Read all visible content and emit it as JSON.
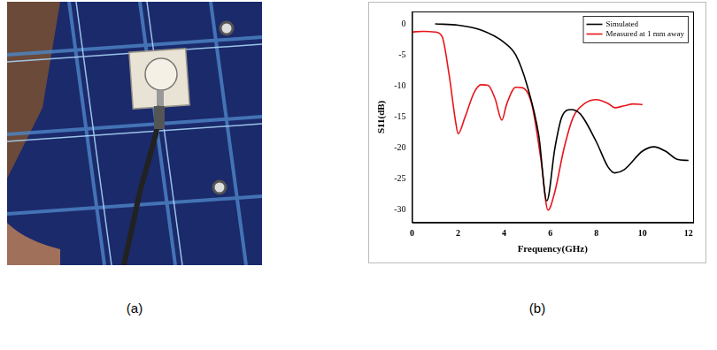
{
  "panel_labels": [
    "(a)",
    "(b)"
  ],
  "chart_data": {
    "type": "line",
    "x_label": "Frequency(GHz)",
    "y_label": "S11(dB)",
    "xlim": [
      0,
      12.2
    ],
    "xticks": [
      0,
      2,
      4,
      6,
      8,
      10,
      12
    ],
    "ylim": [
      -32,
      2
    ],
    "yticks": [
      -30,
      -25,
      -20,
      -15,
      -10,
      -5,
      0
    ],
    "grid": false,
    "legend": "upper right",
    "series": [
      {
        "name": "Simulated",
        "color": "#000000",
        "x": [
          1,
          2,
          3,
          4,
          4.5,
          5,
          5.5,
          5.85,
          6.2,
          6.5,
          6.9,
          7.3,
          8,
          8.5,
          8.8,
          9.2,
          10,
          10.5,
          11,
          11.5,
          12
        ],
        "values": [
          0,
          -0.2,
          -1,
          -3,
          -5,
          -10,
          -18,
          -28.5,
          -20,
          -15,
          -13.8,
          -14.5,
          -19,
          -23,
          -24,
          -23.5,
          -20.5,
          -19.8,
          -20.5,
          -21.8,
          -22
        ]
      },
      {
        "name": "Measured at 1 mm away",
        "color": "#e8141b",
        "x": [
          0,
          0.5,
          1,
          1.3,
          1.6,
          1.9,
          2,
          2.3,
          2.7,
          3,
          3.3,
          3.6,
          3.9,
          4.1,
          4.5,
          4.8,
          5.2,
          5.6,
          5.9,
          6.2,
          6.6,
          7,
          7.5,
          8,
          8.5,
          8.8,
          9.2,
          9.6,
          10
        ],
        "values": [
          -1.3,
          -1.2,
          -1.3,
          -2,
          -8,
          -16,
          -17.7,
          -15,
          -11,
          -9.8,
          -9.9,
          -12,
          -15.5,
          -13,
          -10.2,
          -10.3,
          -13,
          -22,
          -30,
          -27,
          -20,
          -15,
          -12.8,
          -12.2,
          -12.8,
          -13.5,
          -13.2,
          -12.9,
          -13
        ]
      }
    ]
  }
}
